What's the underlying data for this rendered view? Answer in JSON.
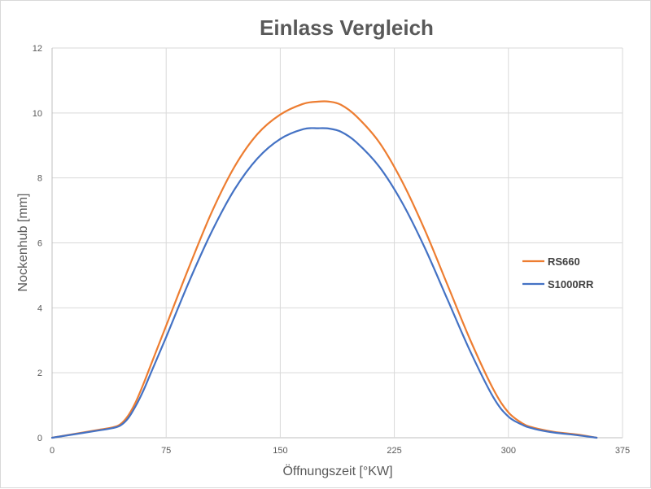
{
  "chart_data": {
    "type": "line",
    "title": "Einlass Vergleich",
    "xlabel": "Öffnungszeit [°KW]",
    "ylabel": "Nockenhub [mm]",
    "xlim": [
      0,
      375
    ],
    "ylim": [
      0,
      12
    ],
    "x_ticks": [
      0,
      75,
      150,
      225,
      300,
      375
    ],
    "y_ticks": [
      0,
      2,
      4,
      6,
      8,
      10,
      12
    ],
    "grid": true,
    "legend_position": "right",
    "series": [
      {
        "name": "RS660",
        "color": "#ED7D31",
        "x": [
          0,
          15,
          30,
          40,
          45,
          50,
          55,
          60,
          65,
          75,
          90,
          105,
          120,
          135,
          150,
          165,
          175,
          182,
          190,
          200,
          215,
          230,
          245,
          260,
          275,
          290,
          300,
          310,
          315,
          320,
          330,
          345,
          358
        ],
        "y": [
          0,
          0.12,
          0.24,
          0.32,
          0.42,
          0.68,
          1.1,
          1.65,
          2.25,
          3.45,
          5.25,
          6.95,
          8.35,
          9.35,
          9.95,
          10.28,
          10.35,
          10.35,
          10.25,
          9.9,
          9.1,
          7.9,
          6.4,
          4.7,
          3.0,
          1.5,
          0.78,
          0.42,
          0.33,
          0.27,
          0.18,
          0.1,
          0
        ]
      },
      {
        "name": "S1000RR",
        "color": "#4472C4",
        "x": [
          0,
          15,
          30,
          40,
          45,
          50,
          55,
          60,
          65,
          75,
          90,
          105,
          120,
          135,
          150,
          165,
          175,
          182,
          190,
          200,
          215,
          230,
          245,
          260,
          275,
          290,
          300,
          310,
          315,
          320,
          330,
          345,
          358
        ],
        "y": [
          0,
          0.11,
          0.22,
          0.3,
          0.38,
          0.6,
          0.98,
          1.45,
          2.0,
          3.1,
          4.8,
          6.35,
          7.65,
          8.6,
          9.2,
          9.5,
          9.53,
          9.52,
          9.42,
          9.1,
          8.35,
          7.25,
          5.85,
          4.25,
          2.65,
          1.25,
          0.65,
          0.38,
          0.3,
          0.24,
          0.16,
          0.08,
          0
        ]
      }
    ]
  }
}
